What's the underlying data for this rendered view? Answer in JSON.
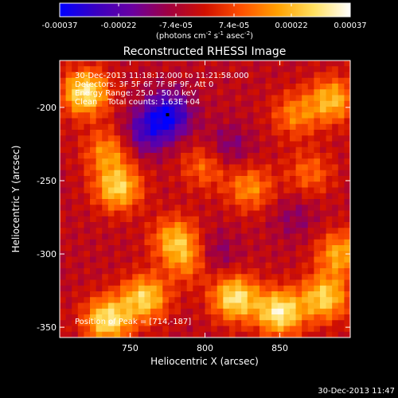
{
  "colors": {
    "background": "#000000",
    "foreground": "#ffffff",
    "colormap": [
      "#0000ff",
      "#3a00c0",
      "#6a00a0",
      "#a00040",
      "#d01000",
      "#ff5000",
      "#ffa000",
      "#ffe060",
      "#ffffff"
    ]
  },
  "colorbar": {
    "tick_labels": [
      "-0.00037",
      "-0.00022",
      "-7.4e-05",
      "7.4e-05",
      "0.00022",
      "0.00037"
    ],
    "ticks": [
      -0.00037,
      -0.00022,
      -7.4e-05,
      7.4e-05,
      0.00022,
      0.00037
    ],
    "range": [
      -0.00037,
      0.00037
    ],
    "unit_prefix": "(photons cm",
    "unit_exp1": "-2",
    "unit_mid": " s",
    "unit_exp2": "-1",
    "unit_mid2": " asec",
    "unit_exp3": "-2",
    "unit_suffix": ")"
  },
  "chart_data": {
    "type": "heatmap",
    "title": "Reconstructed RHESSI Image",
    "xlabel": "Heliocentric X (arcsec)",
    "ylabel": "Heliocentric Y (arcsec)",
    "xlim": [
      703,
      897
    ],
    "ylim": [
      -357,
      -168
    ],
    "xticks": [
      750,
      800,
      850
    ],
    "yticks": [
      -200,
      -250,
      -300,
      -350
    ],
    "annotations": [
      "30-Dec-2013 11:18:12.000 to 11:21:58.000",
      "Detectors: 3F 5F 6F 7F 8F 9F, Att 0",
      "Energy Range: 25.0 - 50.0 keV",
      "Clean    Total counts: 1.63E+04"
    ],
    "peak_label": "Position of Peak = [714,-187]",
    "peak": [
      714,
      -187
    ],
    "blobs": [
      {
        "x": 720,
        "y": -190,
        "v": 0.00035
      },
      {
        "x": 735,
        "y": -230,
        "v": 0.0002
      },
      {
        "x": 742,
        "y": -255,
        "v": 0.0003
      },
      {
        "x": 780,
        "y": -290,
        "v": 0.00024
      },
      {
        "x": 790,
        "y": -305,
        "v": 0.00018
      },
      {
        "x": 800,
        "y": -240,
        "v": 0.00016
      },
      {
        "x": 830,
        "y": -255,
        "v": 0.0002
      },
      {
        "x": 860,
        "y": -205,
        "v": 0.00018
      },
      {
        "x": 885,
        "y": -195,
        "v": 0.00026
      },
      {
        "x": 870,
        "y": -245,
        "v": 0.00015
      },
      {
        "x": 735,
        "y": -345,
        "v": 0.00034
      },
      {
        "x": 760,
        "y": -330,
        "v": 0.0003
      },
      {
        "x": 820,
        "y": -330,
        "v": 0.00034
      },
      {
        "x": 850,
        "y": -340,
        "v": 0.00036
      },
      {
        "x": 880,
        "y": -330,
        "v": 0.0003
      },
      {
        "x": 890,
        "y": -300,
        "v": 0.00024
      },
      {
        "x": 775,
        "y": -205,
        "v": -0.0003
      },
      {
        "x": 760,
        "y": -218,
        "v": -0.00018
      },
      {
        "x": 815,
        "y": -228,
        "v": -0.00012
      },
      {
        "x": 805,
        "y": -300,
        "v": -0.00012
      },
      {
        "x": 860,
        "y": -275,
        "v": -8e-05
      }
    ]
  },
  "footer": {
    "timestamp": "30-Dec-2013 11:47"
  }
}
